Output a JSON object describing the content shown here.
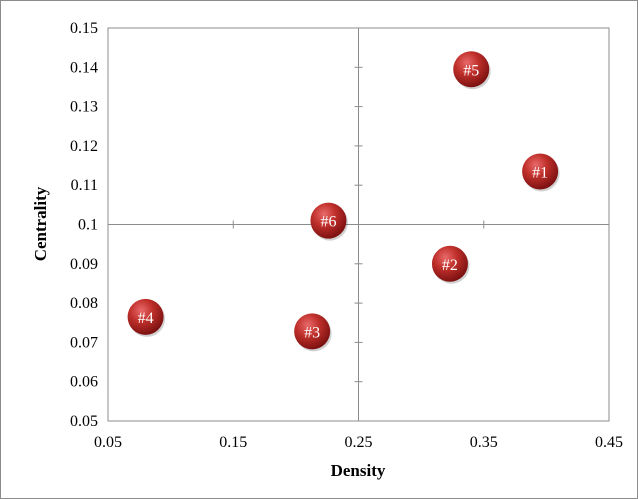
{
  "chart_data": {
    "type": "scatter",
    "title": "",
    "xlabel": "Density",
    "ylabel": "Centrality",
    "xlim": [
      0.05,
      0.45
    ],
    "ylim": [
      0.05,
      0.15
    ],
    "x_ticks": [
      "0.05",
      "0.15",
      "0.25",
      "0.35",
      "0.45"
    ],
    "y_ticks": [
      "0.05",
      "0.06",
      "0.07",
      "0.08",
      "0.09",
      "0.1",
      "0.11",
      "0.12",
      "0.13",
      "0.14",
      "0.15"
    ],
    "quadrant_lines": {
      "x": 0.25,
      "y": 0.1
    },
    "grid": false,
    "marker_color": "#b22222",
    "points": [
      {
        "label": "#1",
        "x": 0.395,
        "y": 0.1135
      },
      {
        "label": "#2",
        "x": 0.323,
        "y": 0.09
      },
      {
        "label": "#3",
        "x": 0.213,
        "y": 0.0728
      },
      {
        "label": "#4",
        "x": 0.08,
        "y": 0.0765
      },
      {
        "label": "#5",
        "x": 0.34,
        "y": 0.1395
      },
      {
        "label": "#6",
        "x": 0.226,
        "y": 0.101
      }
    ]
  }
}
